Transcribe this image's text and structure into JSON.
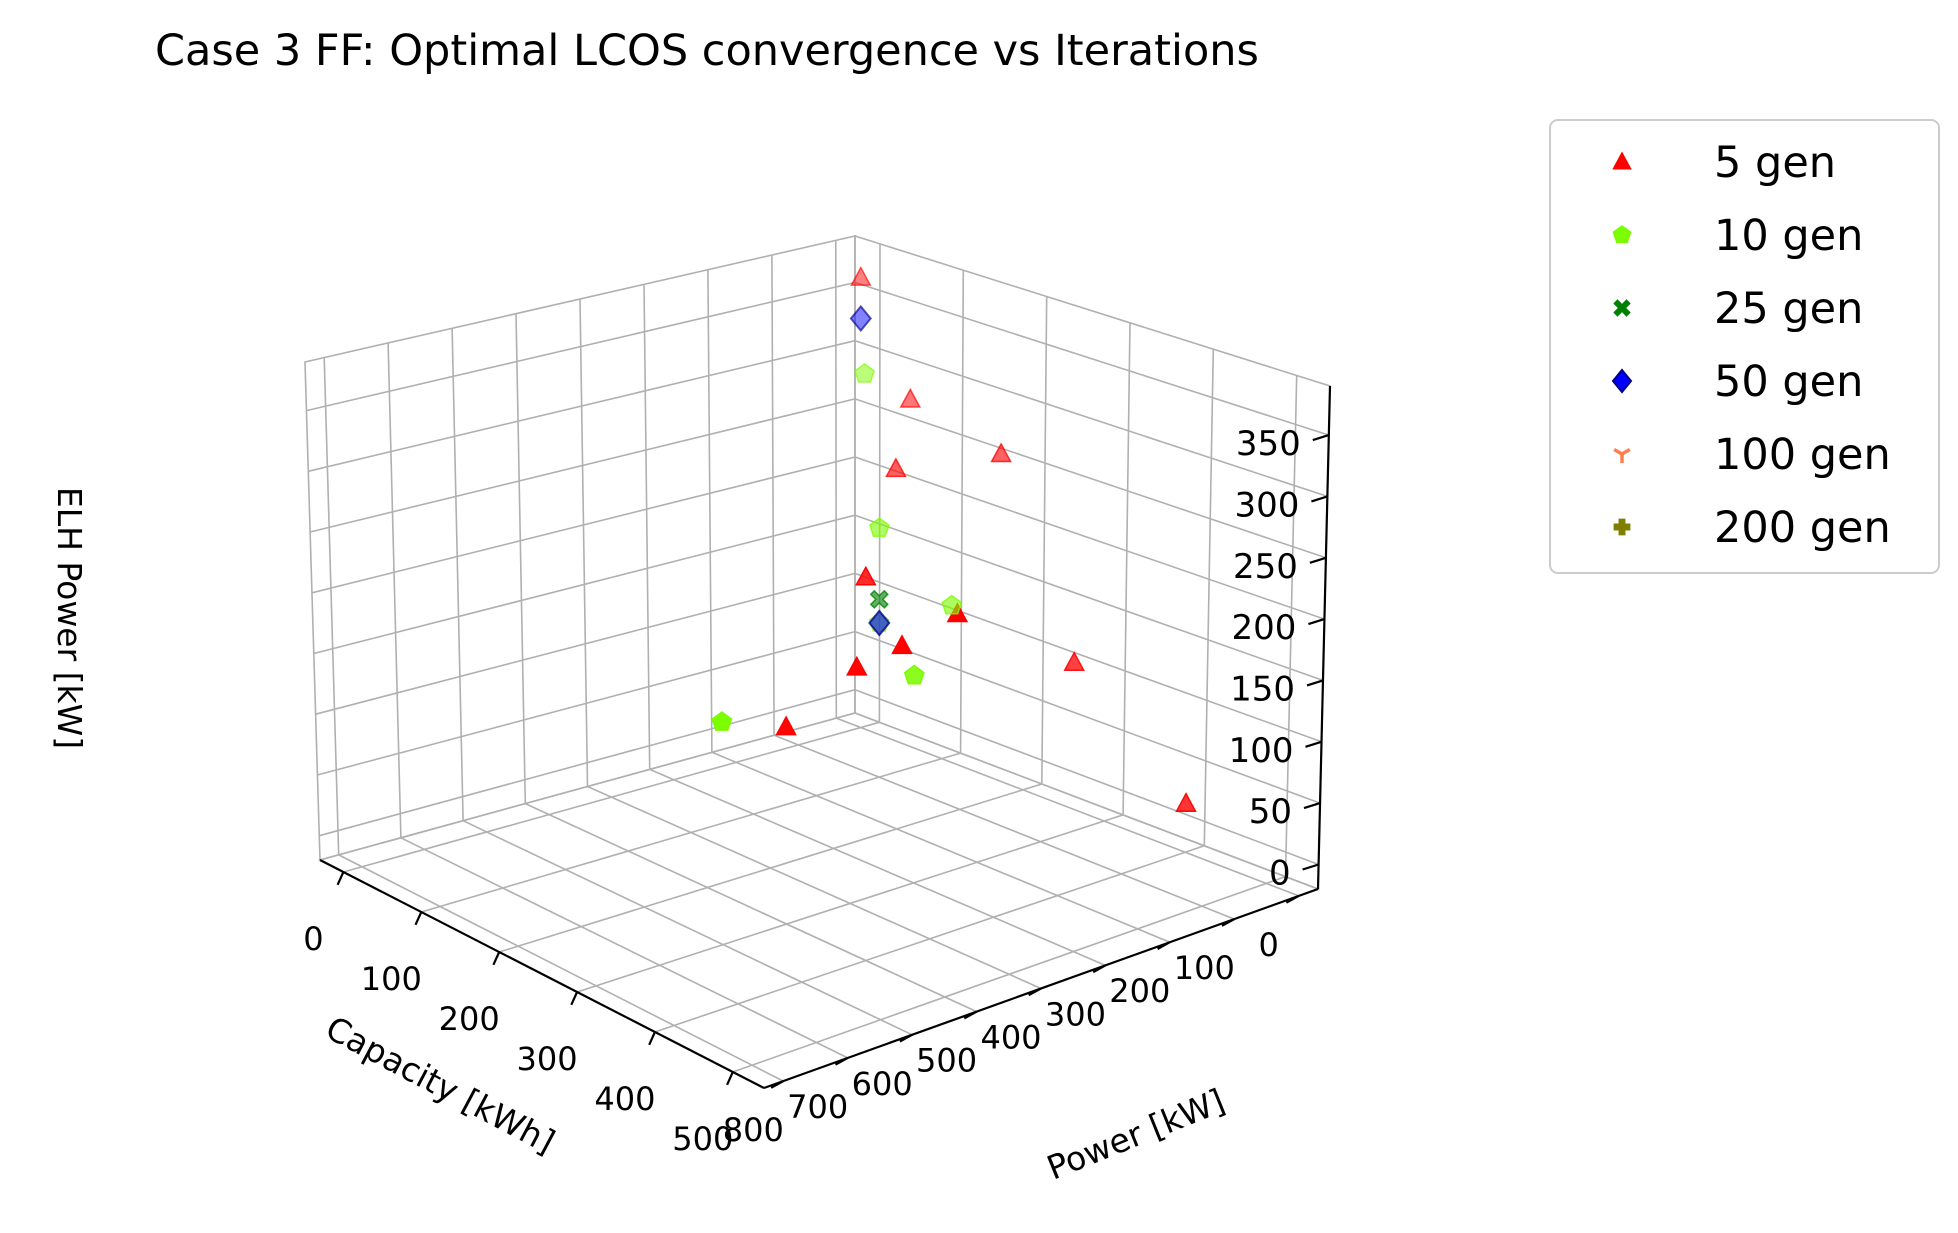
{
  "chart_data": {
    "type": "scatter",
    "title": "Case 3 FF: Optimal LCOS convergence vs Iterations",
    "xlabel": "Power [kW]",
    "ylabel": "Capacity [kWh]",
    "zlabel": "ELH Power [kW]",
    "x_ticks": [
      0,
      100,
      200,
      300,
      400,
      500
    ],
    "y_ticks": [
      0,
      100,
      200,
      300,
      400,
      500,
      600,
      700,
      800
    ],
    "z_ticks": [
      0,
      50,
      100,
      150,
      200,
      250,
      300,
      350
    ],
    "xlim": [
      -30,
      540
    ],
    "ylim": [
      -30,
      830
    ],
    "zlim": [
      -20,
      390
    ],
    "legend": {
      "location": "upper-right-outside",
      "entries": [
        "5 gen",
        "10 gen",
        "25 gen",
        "50 gen",
        "100 gen",
        "200 gen"
      ]
    },
    "series": [
      {
        "name": "5 gen",
        "marker": "triangle",
        "color": "#ff0000",
        "points": [
          {
            "x": 440,
            "y": 410,
            "z": 255
          },
          {
            "x": 380,
            "y": 420,
            "z": 215
          },
          {
            "x": 340,
            "y": 440,
            "z": 190
          },
          {
            "x": 300,
            "y": 500,
            "z": 140
          },
          {
            "x": 120,
            "y": 100,
            "z": 245
          },
          {
            "x": 0,
            "y": 0,
            "z": 365
          },
          {
            "x": 60,
            "y": 0,
            "z": 275
          },
          {
            "x": 170,
            "y": 0,
            "z": 255
          },
          {
            "x": 240,
            "y": 300,
            "z": 215
          },
          {
            "x": 300,
            "y": 50,
            "z": 120
          },
          {
            "x": 400,
            "y": 0,
            "z": 20
          }
        ]
      },
      {
        "name": "10 gen",
        "marker": "pentagon",
        "color": "#7cfc00",
        "points": [
          {
            "x": 20,
            "y": 20,
            "z": 290
          },
          {
            "x": 100,
            "y": 100,
            "z": 190
          },
          {
            "x": 300,
            "y": 600,
            "z": 160
          },
          {
            "x": 300,
            "y": 300,
            "z": 150
          },
          {
            "x": 150,
            "y": 50,
            "z": 130
          },
          {
            "x": 100,
            "y": 100,
            "z": 110
          }
        ]
      },
      {
        "name": "25 gen",
        "marker": "x",
        "color": "#008000",
        "points": [
          {
            "x": 100,
            "y": 100,
            "z": 130
          }
        ]
      },
      {
        "name": "50 gen",
        "marker": "diamond",
        "color": "#0000ff",
        "points": [
          {
            "x": 0,
            "y": 0,
            "z": 330
          },
          {
            "x": 100,
            "y": 100,
            "z": 110
          }
        ]
      },
      {
        "name": "100 gen",
        "marker": "tri_down",
        "color": "#ff7f50",
        "points": []
      },
      {
        "name": "200 gen",
        "marker": "plus",
        "color": "#808000",
        "points": []
      }
    ]
  }
}
